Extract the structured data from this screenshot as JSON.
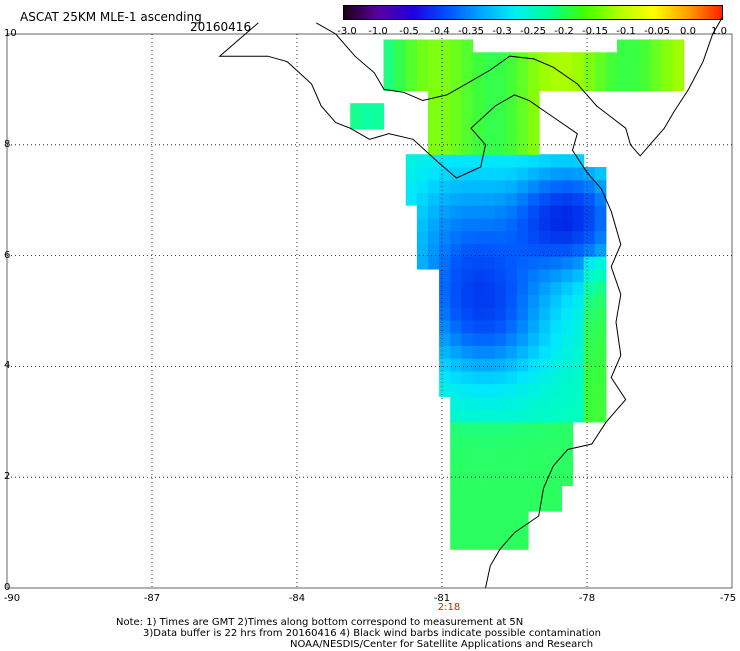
{
  "header": {
    "title": "ASCAT 25KM MLE-1 ascending",
    "date": "20160416"
  },
  "colorbar": {
    "ticks": [
      "-3.0",
      "-1.0",
      "-0.5",
      "-0.4",
      "-0.35",
      "-0.3",
      "-0.25",
      "-0.2",
      "-0.15",
      "-0.1",
      "-0.05",
      "0.0",
      "1.0"
    ],
    "stops": [
      "#1a0018",
      "#5a00a0",
      "#1e00e0",
      "#0050ff",
      "#00a8ff",
      "#00f0f0",
      "#00ff90",
      "#40ff00",
      "#b0ff00",
      "#ffff00",
      "#ffa000",
      "#ff2000"
    ]
  },
  "axes": {
    "y_ticks": [
      "10",
      "8",
      "6",
      "4",
      "2",
      "0"
    ],
    "x_ticks": [
      "-90",
      "-87",
      "-84",
      "-81",
      "-78",
      "-75"
    ],
    "time_label": "2:18"
  },
  "notes": {
    "line1": "Note: 1) Times are GMT 2)Times along bottom correspond to measurement at 5N",
    "line2": "3)Data buffer is 22 hrs from 20160416 4) Black wind barbs indicate possible contamination",
    "line3": "NOAA/NESDIS/Center for Satellite Applications and Research"
  },
  "map": {
    "lon_range": [
      -90,
      -75
    ],
    "lat_range": [
      0,
      10
    ],
    "swath_value_range": [
      -0.5,
      -0.1
    ]
  }
}
